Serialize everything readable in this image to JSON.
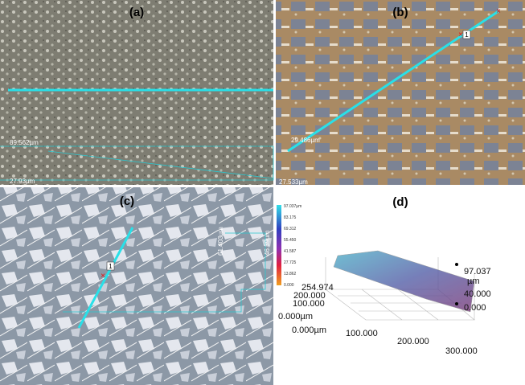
{
  "panels": [
    {
      "label": "(a)",
      "measurements": [
        "89.562µm",
        "27.93µm"
      ]
    },
    {
      "label": "(b)",
      "measurements": [
        "29.486µm",
        "27.533µm"
      ],
      "marker": "1"
    },
    {
      "label": "(c)",
      "measurements": [
        "61.403µm",
        "46.39µm"
      ],
      "marker": "1"
    },
    {
      "label": "(d)",
      "colorbar": [
        "97.037µm",
        "83.175",
        "69.312",
        "55.450",
        "41.587",
        "27.725",
        "13.862",
        "0.000"
      ],
      "axes": {
        "z_max": "97.037",
        "z_unit": "µm",
        "z_mid": "40.000",
        "z_min": "0.000",
        "y_max": "254.974",
        "y_mid": "200.000",
        "y_low": "100.000",
        "y_zero": "0.000µm",
        "x_zero": "0.000µm",
        "x_100": "100.000",
        "x_200": "200.000",
        "x_300": "300.000"
      }
    }
  ]
}
